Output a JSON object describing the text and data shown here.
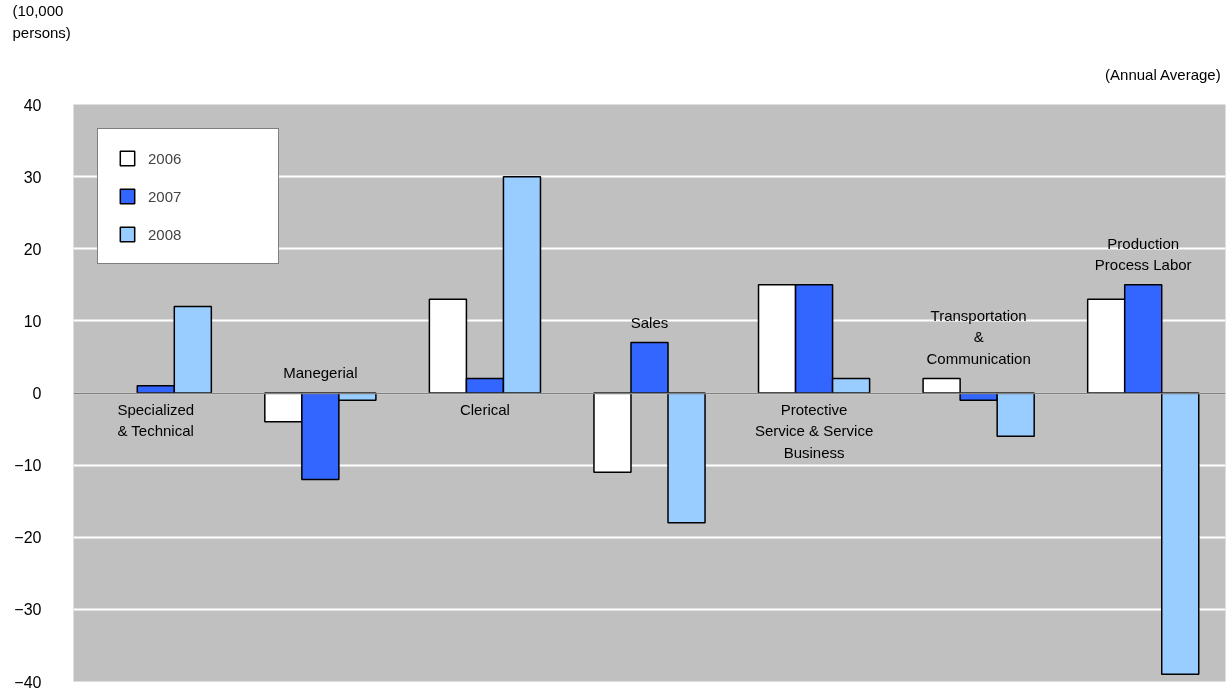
{
  "chart_data": {
    "type": "bar",
    "ylabel": "(10,000\npersons)",
    "annotations": [
      "(Annual Average)"
    ],
    "categories": [
      "Specialized\n& Technical",
      "Manegerial",
      "Clerical",
      "Sales",
      "Protective\nService & Service\nBusiness",
      "Transportation\n&\nCommunication",
      "Production\nProcess Labor"
    ],
    "series": [
      {
        "name": "2006",
        "color": "#ffffff",
        "values": [
          null,
          -4,
          13,
          -11,
          15,
          2,
          13
        ]
      },
      {
        "name": "2007",
        "color": "#3366ff",
        "values": [
          1,
          -12,
          2,
          7,
          15,
          -1,
          15
        ]
      },
      {
        "name": "2008",
        "color": "#99ccff",
        "values": [
          12,
          -1,
          30,
          -18,
          2,
          -6,
          -39
        ]
      }
    ],
    "ylim": [
      -40,
      40
    ],
    "yticks": [
      -40,
      -30,
      -20,
      -10,
      0,
      10,
      20,
      30,
      40
    ],
    "grid": "y",
    "legend": "top left",
    "tick_labels": "y"
  }
}
